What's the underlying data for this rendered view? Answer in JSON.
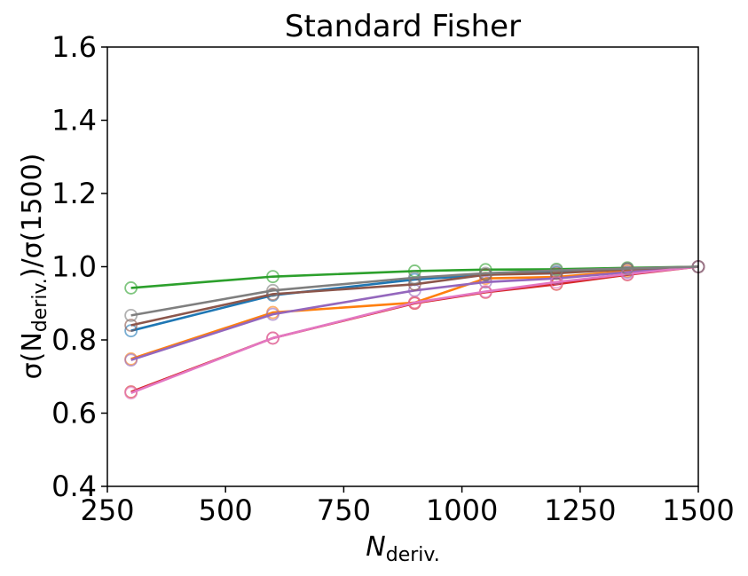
{
  "chart_data": {
    "type": "line",
    "title": "Standard Fisher",
    "xlabel": {
      "main": "N",
      "sub": "deriv."
    },
    "ylabel": {
      "prefix": "σ(N",
      "sub": "deriv.",
      "suffix": ")/σ(1500)"
    },
    "xlim": [
      250,
      1500
    ],
    "ylim": [
      0.4,
      1.6
    ],
    "xticks": [
      250,
      500,
      750,
      1000,
      1250,
      1500
    ],
    "xtick_labels": [
      "250",
      "500",
      "750",
      "1000",
      "1250",
      "1500"
    ],
    "yticks": [
      0.4,
      0.6,
      0.8,
      1.0,
      1.2,
      1.4,
      1.6
    ],
    "ytick_labels": [
      "0.4",
      "0.6",
      "0.8",
      "1.0",
      "1.2",
      "1.4",
      "1.6"
    ],
    "grid": false,
    "x": [
      300,
      600,
      900,
      1050,
      1200,
      1350,
      1500
    ],
    "series": [
      {
        "color": "#1f77b4",
        "values": [
          0.825,
          0.922,
          0.965,
          0.978,
          0.985,
          0.993,
          1.0
        ]
      },
      {
        "color": "#ff7f0e",
        "values": [
          0.748,
          0.875,
          0.902,
          0.968,
          0.972,
          0.988,
          1.0
        ]
      },
      {
        "color": "#2ca02c",
        "values": [
          0.942,
          0.973,
          0.988,
          0.992,
          0.993,
          0.997,
          1.0
        ]
      },
      {
        "color": "#d62728",
        "values": [
          0.658,
          0.805,
          0.9,
          0.93,
          0.952,
          0.978,
          1.0
        ]
      },
      {
        "color": "#9467bd",
        "values": [
          0.745,
          0.87,
          0.935,
          0.958,
          0.968,
          0.985,
          1.0
        ]
      },
      {
        "color": "#8c564b",
        "values": [
          0.84,
          0.925,
          0.952,
          0.978,
          0.982,
          0.993,
          1.0
        ]
      },
      {
        "color": "#e377c2",
        "values": [
          0.655,
          0.805,
          0.902,
          0.932,
          0.958,
          0.98,
          1.0
        ]
      },
      {
        "color": "#7f7f7f",
        "values": [
          0.867,
          0.935,
          0.97,
          0.982,
          0.99,
          0.995,
          1.0
        ]
      }
    ]
  }
}
